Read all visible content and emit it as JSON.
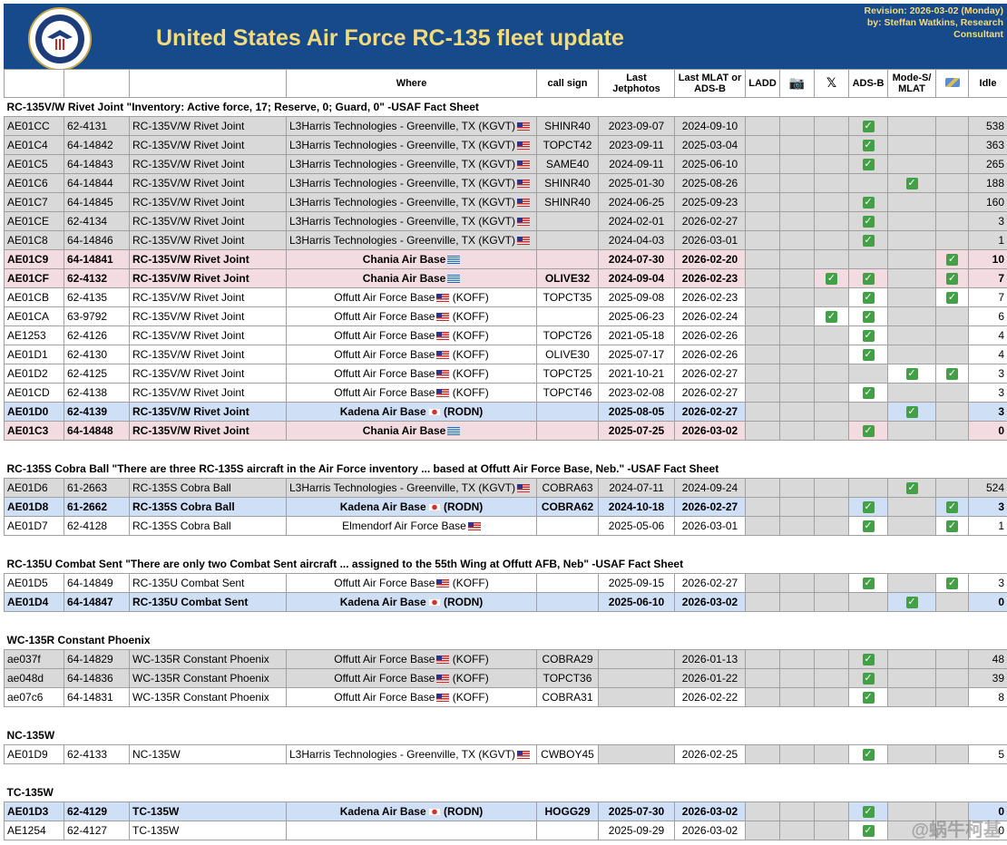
{
  "header": {
    "title": "United States Air Force RC-135 fleet update",
    "revision_line1": "Revision: 2026-03-02 (Monday)",
    "revision_line2": "by: Steffan Watkins, Research",
    "revision_line3": "Consultant"
  },
  "columns": {
    "where": "Where",
    "callsign": "call sign",
    "last_jetphotos": "Last Jetphotos",
    "last_mlat": "Last MLAT or ADS-B",
    "ladd": "LADD",
    "camera_icon": "camera-icon",
    "x": "𝕏",
    "adsb": "ADS-B",
    "modes": "Mode-S/ MLAT",
    "satellite_icon": "satellite-icon",
    "idle": "Idle"
  },
  "colors": {
    "banner": "#174a8b",
    "title": "#f3db7b",
    "gray": "#d9d9d9",
    "pink": "#f2dce2",
    "blue": "#cfdff5",
    "check": "#43a047"
  },
  "sections": [
    {
      "title": "RC-135V/W Rivet Joint \"Inventory: Active force, 17; Reserve, 0; Guard, 0\" -USAF Fact Sheet",
      "rows": [
        {
          "hex": "AE01CC",
          "serial": "62-4131",
          "type": "RC-135V/W Rivet Joint",
          "where": "L3Harris Technologies - Greenville, TX (KGVT)",
          "flag": "us",
          "callsign": "SHINR40",
          "jet": "2023-09-07",
          "mlat": "2024-09-10",
          "x": "",
          "adsb": "✓",
          "modes": "",
          "sat": "",
          "idle": "538",
          "style": "gray",
          "align": "left"
        },
        {
          "hex": "AE01C4",
          "serial": "64-14842",
          "type": "RC-135V/W Rivet Joint",
          "where": "L3Harris Technologies - Greenville, TX (KGVT)",
          "flag": "us",
          "callsign": "TOPCT42",
          "jet": "2023-09-11",
          "mlat": "2025-03-04",
          "x": "",
          "adsb": "✓",
          "modes": "",
          "sat": "",
          "idle": "363",
          "style": "gray",
          "align": "left"
        },
        {
          "hex": "AE01C5",
          "serial": "64-14843",
          "type": "RC-135V/W Rivet Joint",
          "where": "L3Harris Technologies - Greenville, TX (KGVT)",
          "flag": "us",
          "callsign": "SAME40",
          "jet": "2024-09-11",
          "mlat": "2025-06-10",
          "x": "",
          "adsb": "✓",
          "modes": "",
          "sat": "",
          "idle": "265",
          "style": "gray",
          "align": "left"
        },
        {
          "hex": "AE01C6",
          "serial": "64-14844",
          "type": "RC-135V/W Rivet Joint",
          "where": "L3Harris Technologies - Greenville, TX (KGVT)",
          "flag": "us",
          "callsign": "SHINR40",
          "jet": "2025-01-30",
          "mlat": "2025-08-26",
          "x": "",
          "adsb": "",
          "modes": "✓",
          "sat": "",
          "idle": "188",
          "style": "gray",
          "align": "left"
        },
        {
          "hex": "AE01C7",
          "serial": "64-14845",
          "type": "RC-135V/W Rivet Joint",
          "where": "L3Harris Technologies - Greenville, TX (KGVT)",
          "flag": "us",
          "callsign": "SHINR40",
          "jet": "2024-06-25",
          "mlat": "2025-09-23",
          "x": "",
          "adsb": "✓",
          "modes": "",
          "sat": "",
          "idle": "160",
          "style": "gray",
          "align": "left"
        },
        {
          "hex": "AE01CE",
          "serial": "62-4134",
          "type": "RC-135V/W Rivet Joint",
          "where": "L3Harris Technologies - Greenville, TX (KGVT)",
          "flag": "us",
          "callsign": "",
          "jet": "2024-02-01",
          "mlat": "2026-02-27",
          "x": "",
          "adsb": "✓",
          "modes": "",
          "sat": "",
          "idle": "3",
          "style": "gray",
          "align": "left"
        },
        {
          "hex": "AE01C8",
          "serial": "64-14846",
          "type": "RC-135V/W Rivet Joint",
          "where": "L3Harris Technologies - Greenville, TX (KGVT)",
          "flag": "us",
          "callsign": "",
          "jet": "2024-04-03",
          "mlat": "2026-03-01",
          "x": "",
          "adsb": "✓",
          "modes": "",
          "sat": "",
          "idle": "1",
          "style": "gray",
          "align": "left"
        },
        {
          "hex": "AE01C9",
          "serial": "64-14841",
          "type": "RC-135V/W Rivet Joint",
          "where": "Chania Air Base",
          "flag": "gr",
          "callsign": "",
          "jet": "2024-07-30",
          "mlat": "2026-02-20",
          "x": "",
          "adsb": "",
          "modes": "",
          "sat": "✓",
          "idle": "10",
          "style": "pink",
          "align": "center"
        },
        {
          "hex": "AE01CF",
          "serial": "62-4132",
          "type": "RC-135V/W Rivet Joint",
          "where": "Chania Air Base",
          "flag": "gr",
          "callsign": "OLIVE32",
          "jet": "2024-09-04",
          "mlat": "2026-02-23",
          "x": "✓",
          "adsb": "✓",
          "modes": "",
          "sat": "✓",
          "idle": "7",
          "style": "pink",
          "align": "center"
        },
        {
          "hex": "AE01CB",
          "serial": "62-4135",
          "type": "RC-135V/W Rivet Joint",
          "where": "Offutt Air Force Base",
          "flag": "us",
          "suffix": "(KOFF)",
          "callsign": "TOPCT35",
          "jet": "2025-09-08",
          "mlat": "2026-02-23",
          "x": "",
          "adsb": "✓",
          "modes": "",
          "sat": "✓",
          "idle": "7",
          "style": "white",
          "align": "center"
        },
        {
          "hex": "AE01CA",
          "serial": "63-9792",
          "type": "RC-135V/W Rivet Joint",
          "where": "Offutt Air Force Base",
          "flag": "us",
          "suffix": "(KOFF)",
          "callsign": "",
          "jet": "2025-06-23",
          "mlat": "2026-02-24",
          "x": "✓",
          "adsb": "✓",
          "modes": "",
          "sat": "",
          "idle": "6",
          "style": "white",
          "align": "center"
        },
        {
          "hex": "AE1253",
          "serial": "62-4126",
          "type": "RC-135V/W Rivet Joint",
          "where": "Offutt Air Force Base",
          "flag": "us",
          "suffix": "(KOFF)",
          "callsign": "TOPCT26",
          "jet": "2021-05-18",
          "mlat": "2026-02-26",
          "x": "",
          "adsb": "✓",
          "modes": "",
          "sat": "",
          "idle": "4",
          "style": "white",
          "align": "center"
        },
        {
          "hex": "AE01D1",
          "serial": "62-4130",
          "type": "RC-135V/W Rivet Joint",
          "where": "Offutt Air Force Base",
          "flag": "us",
          "suffix": "(KOFF)",
          "callsign": "OLIVE30",
          "jet": "2025-07-17",
          "mlat": "2026-02-26",
          "x": "",
          "adsb": "✓",
          "modes": "",
          "sat": "",
          "idle": "4",
          "style": "white",
          "align": "center"
        },
        {
          "hex": "AE01D2",
          "serial": "62-4125",
          "type": "RC-135V/W Rivet Joint",
          "where": "Offutt Air Force Base",
          "flag": "us",
          "suffix": "(KOFF)",
          "callsign": "TOPCT25",
          "jet": "2021-10-21",
          "mlat": "2026-02-27",
          "x": "",
          "adsb": "",
          "modes": "✓",
          "sat": "✓",
          "idle": "3",
          "style": "white",
          "align": "center"
        },
        {
          "hex": "AE01CD",
          "serial": "62-4138",
          "type": "RC-135V/W Rivet Joint",
          "where": "Offutt Air Force Base",
          "flag": "us",
          "suffix": "(KOFF)",
          "callsign": "TOPCT46",
          "jet": "2023-02-08",
          "mlat": "2026-02-27",
          "x": "",
          "adsb": "✓",
          "modes": "",
          "sat": "",
          "idle": "3",
          "style": "white",
          "align": "center"
        },
        {
          "hex": "AE01D0",
          "serial": "62-4139",
          "type": "RC-135V/W Rivet Joint",
          "where": "Kadena Air Base",
          "flag": "jp",
          "suffix": "(RODN)",
          "callsign": "",
          "jet": "2025-08-05",
          "mlat": "2026-02-27",
          "x": "",
          "adsb": "",
          "modes": "✓",
          "sat": "",
          "idle": "3",
          "style": "blue",
          "align": "center"
        },
        {
          "hex": "AE01C3",
          "serial": "64-14848",
          "type": "RC-135V/W Rivet Joint",
          "where": "Chania Air Base",
          "flag": "gr",
          "callsign": "",
          "jet": "2025-07-25",
          "mlat": "2026-03-02",
          "x": "",
          "adsb": "✓",
          "modes": "",
          "sat": "",
          "idle": "0",
          "style": "pink",
          "align": "center"
        }
      ]
    },
    {
      "title": "RC-135S Cobra Ball \"There are three RC-135S aircraft in the Air Force inventory ... based at Offutt Air Force Base, Neb.\"  -USAF Fact Sheet",
      "rows": [
        {
          "hex": "AE01D6",
          "serial": "61-2663",
          "type": "RC-135S Cobra Ball",
          "where": "L3Harris Technologies - Greenville, TX (KGVT)",
          "flag": "us",
          "callsign": "COBRA63",
          "jet": "2024-07-11",
          "mlat": "2024-09-24",
          "x": "",
          "adsb": "",
          "modes": "✓",
          "sat": "",
          "idle": "524",
          "style": "gray",
          "align": "left"
        },
        {
          "hex": "AE01D8",
          "serial": "61-2662",
          "type": "RC-135S Cobra Ball",
          "where": "Kadena Air Base",
          "flag": "jp",
          "suffix": "(RODN)",
          "callsign": "COBRA62",
          "jet": "2024-10-18",
          "mlat": "2026-02-27",
          "x": "",
          "adsb": "✓",
          "modes": "",
          "sat": "✓",
          "idle": "3",
          "style": "blue",
          "align": "center"
        },
        {
          "hex": "AE01D7",
          "serial": "62-4128",
          "type": "RC-135S Cobra Ball",
          "where": "Elmendorf Air Force Base",
          "flag": "us",
          "callsign": "",
          "jet": "2025-05-06",
          "mlat": "2026-03-01",
          "x": "",
          "adsb": "✓",
          "modes": "",
          "sat": "✓",
          "idle": "1",
          "style": "white",
          "align": "center"
        }
      ]
    },
    {
      "title": "RC-135U Combat Sent \"There are only two Combat Sent aircraft ... assigned to the 55th Wing at Offutt AFB, Neb\"  -USAF Fact Sheet",
      "rows": [
        {
          "hex": "AE01D5",
          "serial": "64-14849",
          "type": "RC-135U Combat Sent",
          "where": "Offutt Air Force Base",
          "flag": "us",
          "suffix": "(KOFF)",
          "callsign": "",
          "jet": "2025-09-15",
          "mlat": "2026-02-27",
          "x": "",
          "adsb": "✓",
          "modes": "",
          "sat": "✓",
          "idle": "3",
          "style": "white",
          "align": "center"
        },
        {
          "hex": "AE01D4",
          "serial": "64-14847",
          "type": "RC-135U Combat Sent",
          "where": "Kadena Air Base",
          "flag": "jp",
          "suffix": "(RODN)",
          "callsign": "",
          "jet": "2025-06-10",
          "mlat": "2026-03-02",
          "x": "",
          "adsb": "",
          "modes": "✓",
          "sat": "",
          "idle": "0",
          "style": "blue",
          "align": "center"
        }
      ]
    },
    {
      "title": "WC-135R Constant Phoenix",
      "rows": [
        {
          "hex": "ae037f",
          "serial": "64-14829",
          "type": "WC-135R Constant Phoenix",
          "where": "Offutt Air Force Base",
          "flag": "us",
          "suffix": "(KOFF)",
          "callsign": "COBRA29",
          "jet": "",
          "mlat": "2026-01-13",
          "x": "",
          "adsb": "✓",
          "modes": "",
          "sat": "",
          "idle": "48",
          "style": "gray",
          "align": "center"
        },
        {
          "hex": "ae048d",
          "serial": "64-14836",
          "type": "WC-135R Constant Phoenix",
          "where": "Offutt Air Force Base",
          "flag": "us",
          "suffix": "(KOFF)",
          "callsign": "TOPCT36",
          "jet": "",
          "mlat": "2026-01-22",
          "x": "",
          "adsb": "✓",
          "modes": "",
          "sat": "",
          "idle": "39",
          "style": "gray",
          "align": "center"
        },
        {
          "hex": "ae07c6",
          "serial": "64-14831",
          "type": "WC-135R Constant Phoenix",
          "where": "Offutt Air Force Base",
          "flag": "us",
          "suffix": "(KOFF)",
          "callsign": "COBRA31",
          "jet": "",
          "mlat": "2026-02-22",
          "x": "",
          "adsb": "✓",
          "modes": "",
          "sat": "",
          "idle": "8",
          "style": "white",
          "align": "center"
        }
      ]
    },
    {
      "title": "NC-135W",
      "rows": [
        {
          "hex": "AE01D9",
          "serial": "62-4133",
          "type": "NC-135W",
          "where": "L3Harris Technologies - Greenville, TX (KGVT)",
          "flag": "us",
          "callsign": "CWBOY45",
          "jet": "",
          "mlat": "2026-02-25",
          "x": "",
          "adsb": "✓",
          "modes": "",
          "sat": "",
          "idle": "5",
          "style": "white",
          "align": "left"
        }
      ]
    },
    {
      "title": "TC-135W",
      "rows": [
        {
          "hex": "AE01D3",
          "serial": "62-4129",
          "type": "TC-135W",
          "where": "Kadena Air Base",
          "flag": "jp",
          "suffix": "(RODN)",
          "callsign": "HOGG29",
          "jet": "2025-07-30",
          "mlat": "2026-03-02",
          "x": "",
          "adsb": "✓",
          "modes": "",
          "sat": "",
          "idle": "0",
          "style": "blue",
          "align": "center"
        },
        {
          "hex": "AE1254",
          "serial": "62-4127",
          "type": "TC-135W",
          "where": "",
          "flag": "",
          "callsign": "",
          "jet": "2025-09-29",
          "mlat": "2026-03-02",
          "x": "",
          "adsb": "✓",
          "modes": "",
          "sat": "",
          "idle": "0",
          "style": "white",
          "align": "center"
        }
      ]
    }
  ],
  "watermark": "@蜗牛柯基"
}
